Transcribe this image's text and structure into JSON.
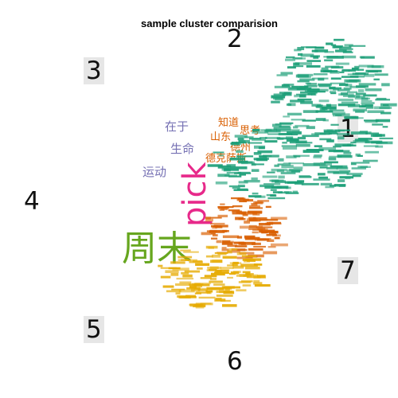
{
  "chart_data": {
    "type": "wordcloud",
    "title": "sample cluster comparision",
    "cluster_labels": [
      "1",
      "2",
      "3",
      "4",
      "5",
      "6",
      "7"
    ],
    "colors": {
      "teal": "#1b9e77",
      "orange": "#d95f02",
      "purple": "#7570b3",
      "magenta": "#e7298a",
      "green": "#66a61e",
      "gold": "#e6ab02"
    },
    "words": [
      {
        "text": "pick",
        "cluster": "magenta"
      },
      {
        "text": "周末",
        "cluster": "green"
      },
      {
        "text": "在于",
        "cluster": "purple"
      },
      {
        "text": "生命",
        "cluster": "purple"
      },
      {
        "text": "运动",
        "cluster": "purple"
      },
      {
        "text": "知道",
        "cluster": "orange"
      },
      {
        "text": "思考",
        "cluster": "orange"
      },
      {
        "text": "山东",
        "cluster": "orange"
      },
      {
        "text": "德州",
        "cluster": "orange"
      },
      {
        "text": "德克萨斯",
        "cluster": "orange"
      }
    ]
  }
}
